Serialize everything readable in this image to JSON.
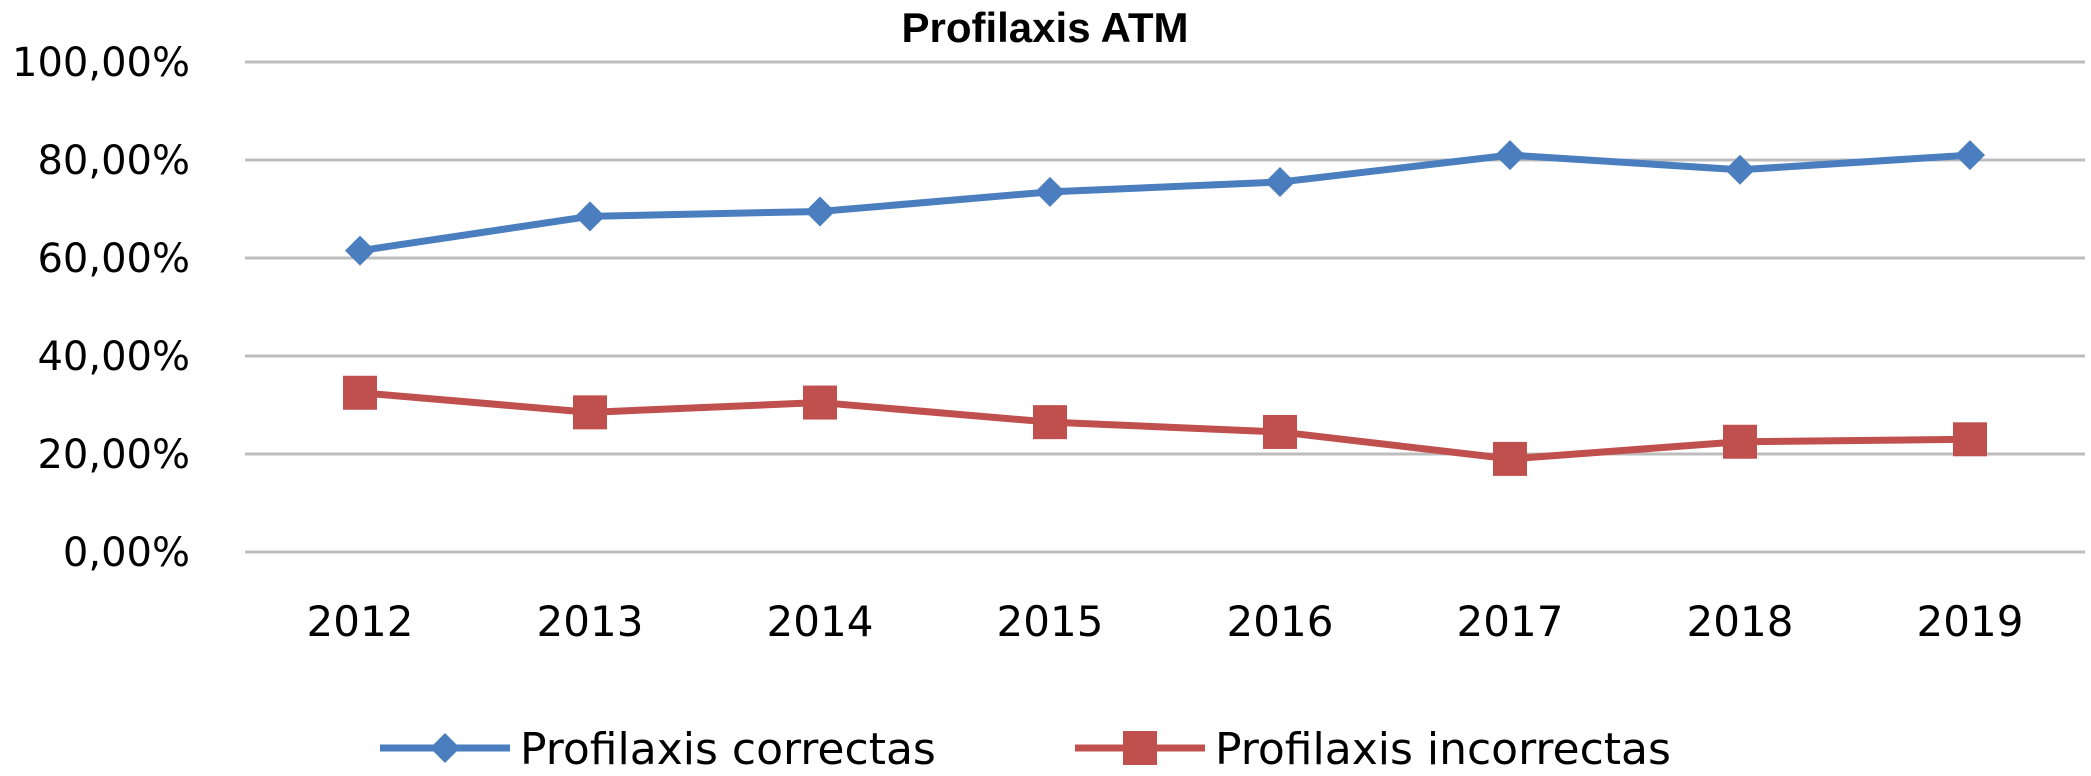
{
  "chart_data": {
    "type": "line",
    "title": "Profilaxis ATM",
    "categories": [
      "2012",
      "2013",
      "2014",
      "2015",
      "2016",
      "2017",
      "2018",
      "2019"
    ],
    "series": [
      {
        "name": "Profilaxis correctas",
        "color": "#4a7ebf",
        "marker": "diamond",
        "values": [
          61.5,
          68.5,
          69.5,
          73.5,
          75.5,
          81.0,
          78.0,
          81.0
        ]
      },
      {
        "name": "Profilaxis incorrectas",
        "color": "#c0504d",
        "marker": "square",
        "values": [
          32.5,
          28.5,
          30.5,
          26.5,
          24.5,
          19.0,
          22.5,
          23.0
        ]
      }
    ],
    "yticks": [
      "0,00%",
      "20,00%",
      "40,00%",
      "60,00%",
      "80,00%",
      "100,00%"
    ],
    "ylim": [
      0,
      100
    ],
    "grid": true,
    "legend_position": "bottom"
  }
}
